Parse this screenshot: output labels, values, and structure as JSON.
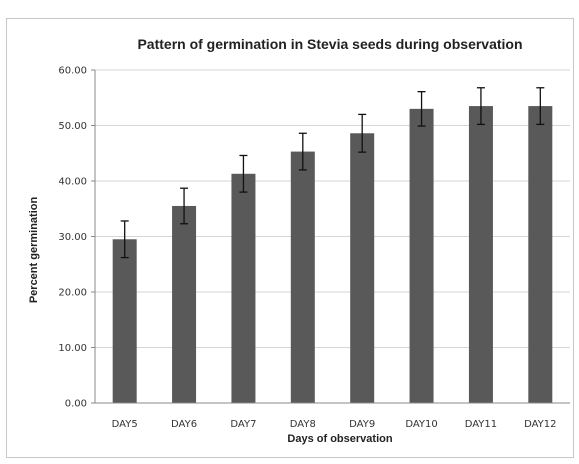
{
  "chart_data": {
    "type": "bar",
    "title": "Pattern of germination in Stevia seeds during observation",
    "xlabel": "Days of observation",
    "ylabel": "Percent germination",
    "categories": [
      "DAY5",
      "DAY6",
      "DAY7",
      "DAY8",
      "DAY9",
      "DAY10",
      "DAY11",
      "DAY12"
    ],
    "values": [
      29.5,
      35.5,
      41.3,
      45.3,
      48.6,
      53.0,
      53.5,
      53.5
    ],
    "error": [
      3.3,
      3.2,
      3.3,
      3.3,
      3.4,
      3.1,
      3.3,
      3.3
    ],
    "ylim": [
      0,
      60
    ],
    "yticks": [
      "0.00",
      "10.00",
      "20.00",
      "30.00",
      "40.00",
      "50.00",
      "60.00"
    ],
    "ytick_values": [
      0,
      10,
      20,
      30,
      40,
      50,
      60
    ],
    "grid": true,
    "bar_color": "#595959",
    "error_bar_color": "#111111",
    "grid_color": "#d6d6d6"
  }
}
